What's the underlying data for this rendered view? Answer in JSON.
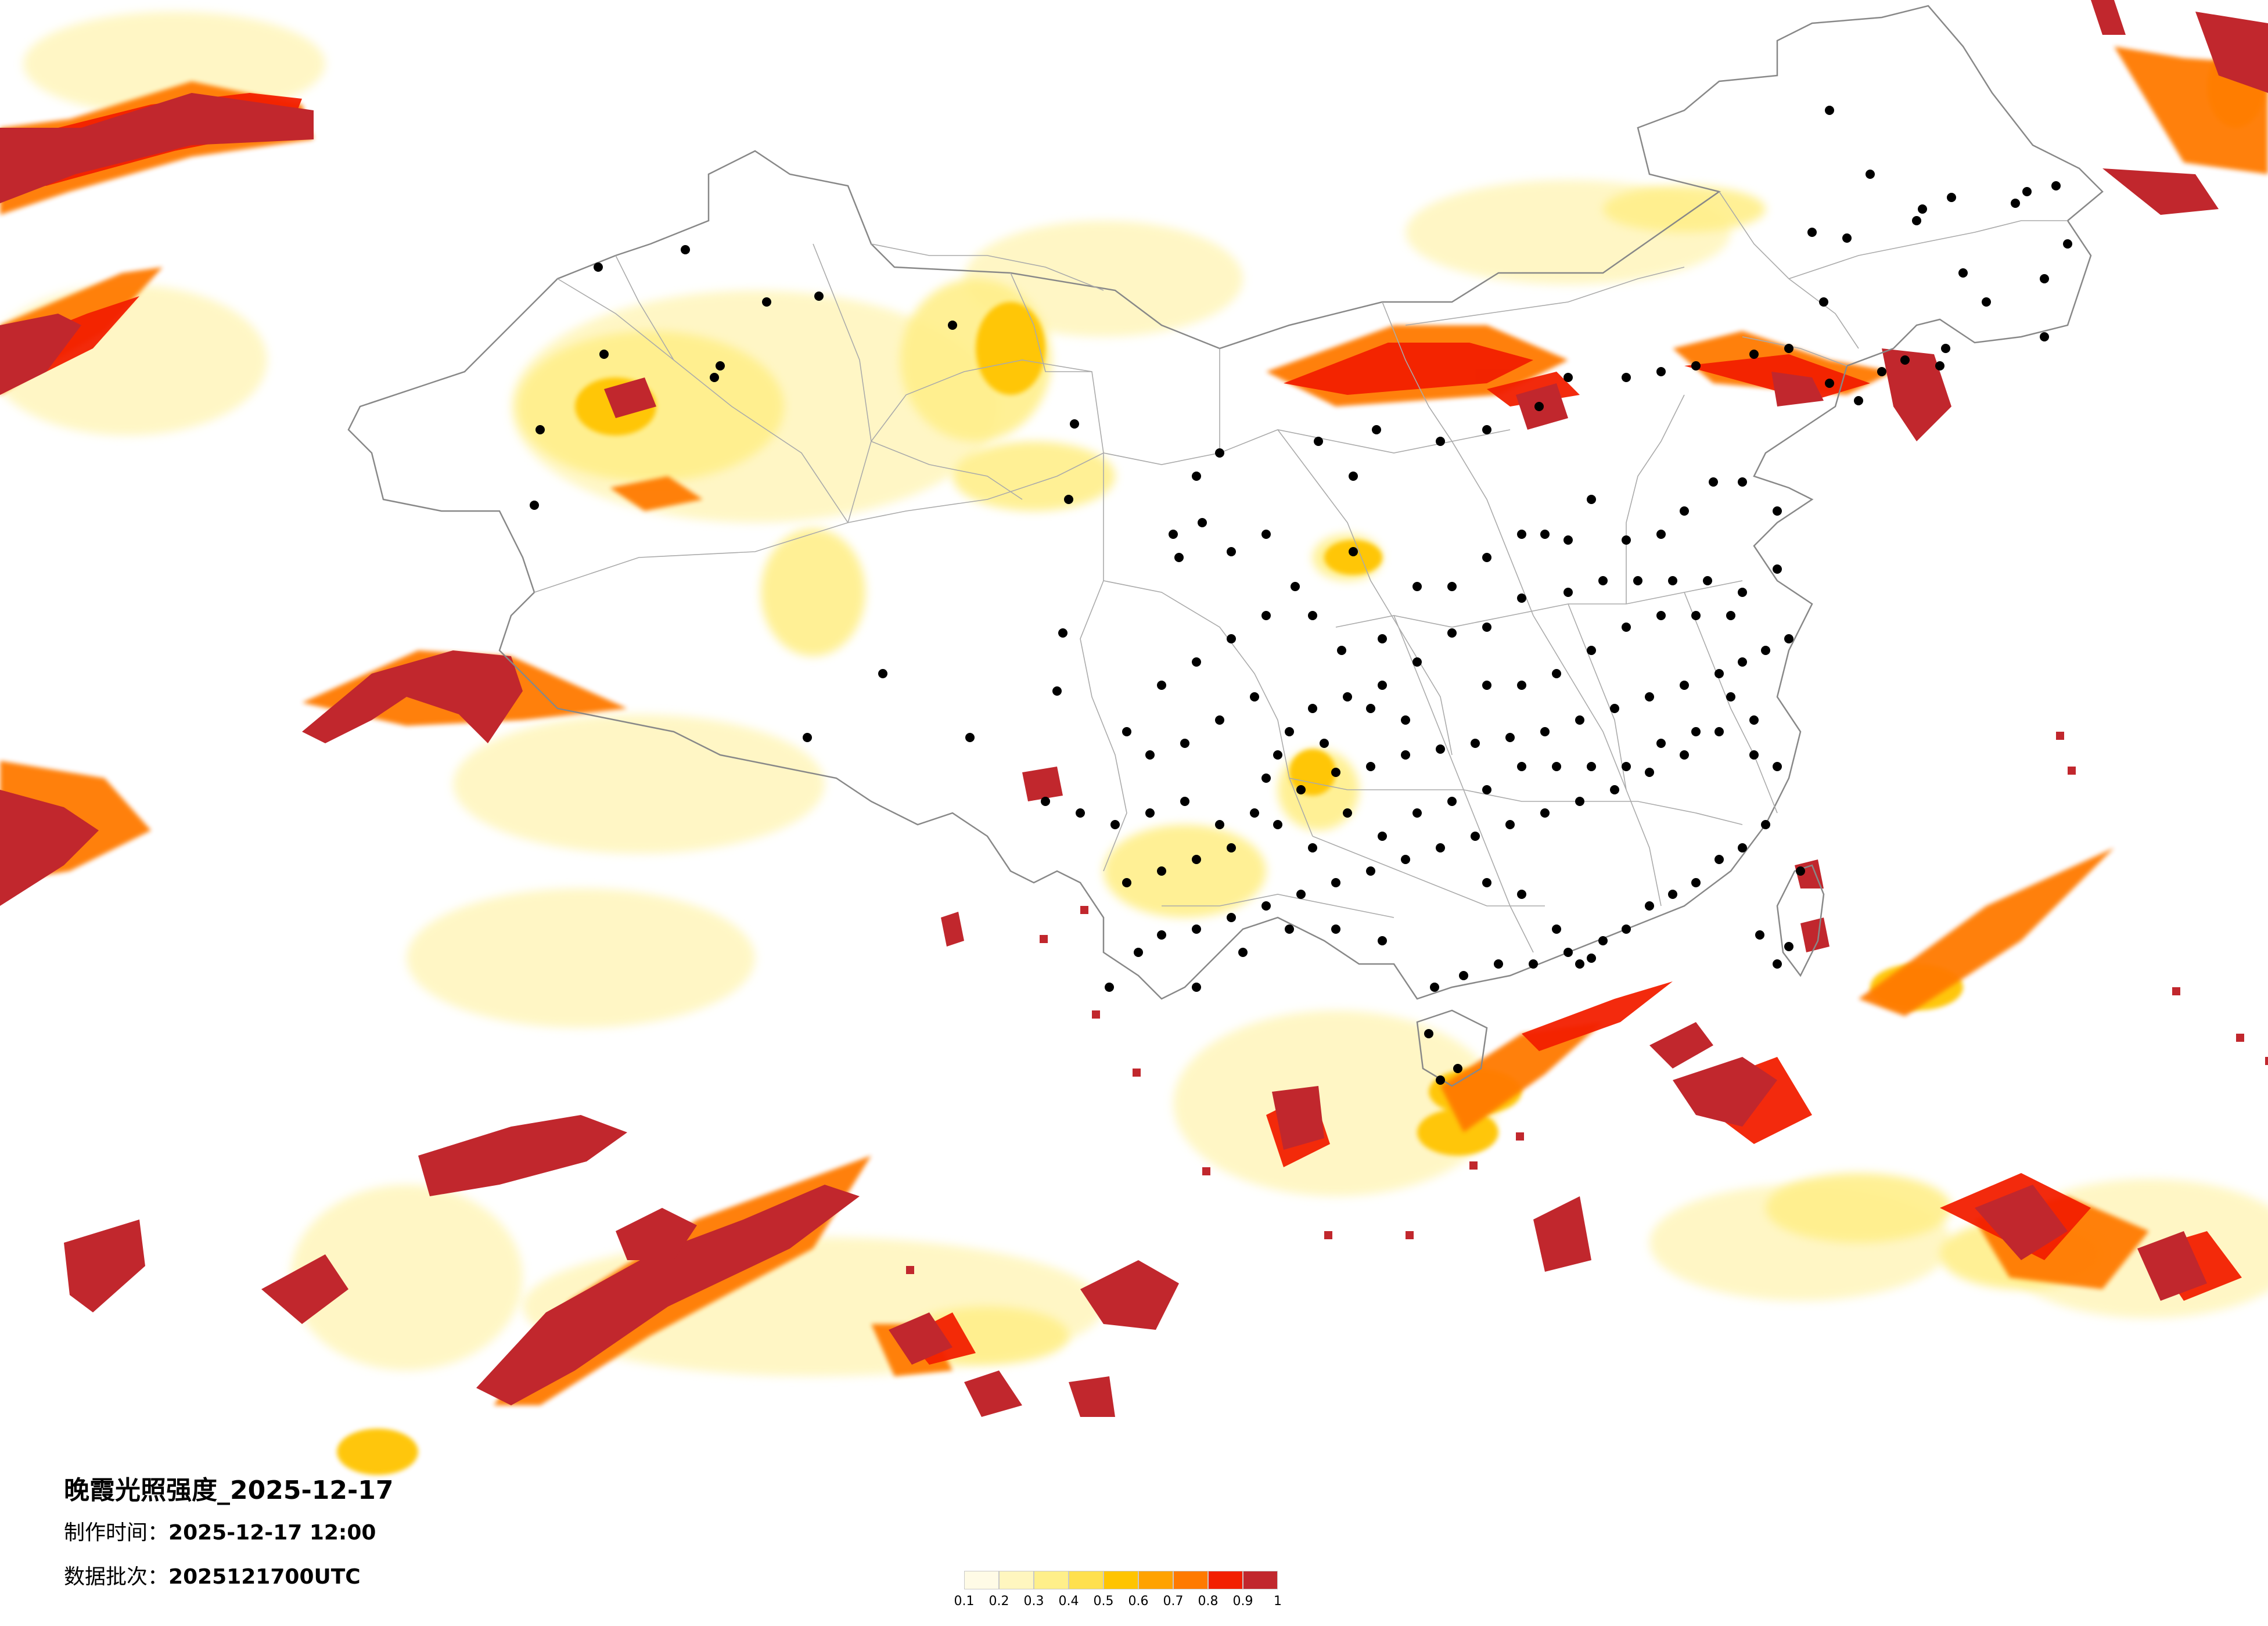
{
  "title": "晚霞光照强度_2025-12-17",
  "info": {
    "made_label": "制作时间：",
    "made_value": "2025-12-17 12:00",
    "batch_label": "数据批次：",
    "batch_value": "2025121700UTC"
  },
  "legend": {
    "ticks": [
      "0.1",
      "0.2",
      "0.3",
      "0.4",
      "0.5",
      "0.6",
      "0.7",
      "0.8",
      "0.9",
      "1"
    ],
    "colors": [
      "#fffbe6",
      "#fff6bf",
      "#ffef8a",
      "#ffe04e",
      "#ffc400",
      "#ffa200",
      "#ff7a00",
      "#f21f00",
      "#c1272d"
    ]
  },
  "map": {
    "background": "#ffffff",
    "border_color": "#888888",
    "city_dot_color": "#000000",
    "land_fill": "#ffffff"
  }
}
